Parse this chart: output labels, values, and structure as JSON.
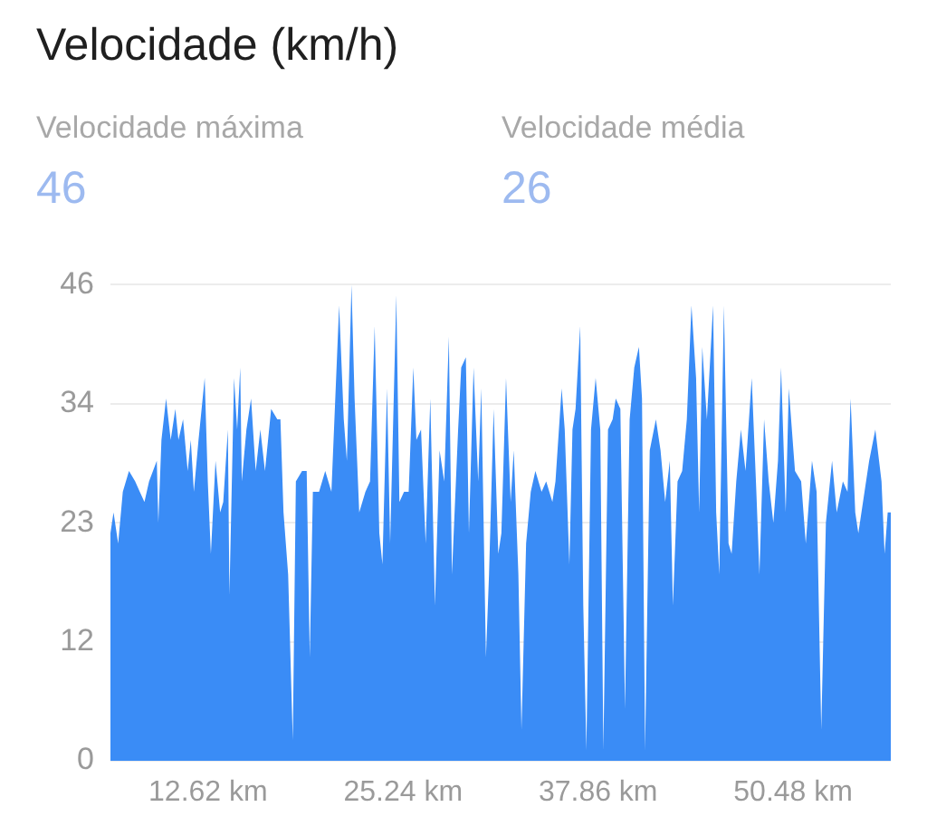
{
  "chart_data": {
    "type": "area",
    "title": "Velocidade (km/h)",
    "annotations": [
      "Velocidade máxima",
      "46",
      "Velocidade média",
      "26"
    ],
    "x": [
      6.3,
      6.5,
      6.8,
      7.1,
      7.5,
      7.9,
      8.2,
      8.5,
      8.8,
      9.3,
      9.4,
      9.6,
      9.9,
      10.2,
      10.5,
      10.7,
      11.0,
      11.3,
      11.5,
      11.7,
      12.0,
      12.4,
      12.6,
      12.8,
      13.1,
      13.4,
      13.6,
      13.9,
      14.0,
      14.3,
      14.5,
      14.7,
      14.8,
      15.1,
      15.4,
      15.7,
      16.0,
      16.3,
      16.7,
      17.1,
      17.3,
      17.5,
      17.8,
      18.1,
      18.3,
      18.7,
      19.0,
      19.2,
      19.4,
      19.8,
      20.2,
      20.6,
      21.1,
      21.4,
      21.6,
      21.9,
      22.1,
      22.4,
      22.8,
      23.1,
      23.4,
      23.7,
      23.9,
      24.2,
      24.4,
      24.8,
      25.0,
      25.3,
      25.6,
      25.9,
      26.1,
      26.4,
      26.7,
      27.0,
      27.3,
      27.6,
      27.9,
      28.2,
      28.4,
      28.8,
      29.0,
      29.3,
      29.5,
      29.8,
      30.1,
      30.3,
      30.6,
      30.8,
      31.1,
      31.4,
      31.6,
      31.9,
      32.2,
      32.4,
      32.7,
      32.9,
      33.2,
      33.5,
      33.8,
      34.2,
      34.5,
      34.9,
      35.1,
      35.5,
      35.7,
      36.0,
      36.2,
      36.4,
      36.7,
      36.9,
      37.1,
      37.4,
      37.7,
      38.0,
      38.2,
      38.5,
      38.8,
      39.0,
      39.3,
      39.6,
      39.9,
      40.2,
      40.5,
      40.7,
      40.9,
      41.2,
      41.6,
      41.9,
      42.2,
      42.5,
      42.7,
      43.0,
      43.3,
      43.6,
      43.9,
      44.2,
      44.4,
      44.6,
      44.9,
      45.3,
      45.5,
      45.7,
      46.0,
      46.3,
      46.5,
      46.8,
      47.1,
      47.4,
      47.8,
      48.1,
      48.3,
      48.6,
      48.9,
      49.2,
      49.5,
      49.7,
      50.0,
      50.2,
      50.6,
      51.0,
      51.3,
      51.7,
      52.0,
      52.3,
      52.6,
      53.0,
      53.3,
      53.7,
      54.0,
      54.2,
      54.5,
      54.7,
      55.1,
      55.4,
      55.8,
      56.2,
      56.4,
      56.6,
      56.8
    ],
    "values": [
      22,
      24,
      21,
      26,
      28,
      27,
      26,
      25,
      27,
      29,
      23,
      31,
      35,
      31,
      34,
      31,
      33,
      28,
      31,
      26,
      31,
      37,
      27,
      20,
      29,
      24,
      25,
      32,
      16,
      37,
      32,
      38,
      27,
      32,
      35,
      28,
      32,
      28,
      34,
      33,
      33,
      24,
      18,
      2,
      27,
      28,
      28,
      10,
      26,
      26,
      28,
      26,
      44,
      33,
      29,
      46,
      35,
      24,
      26,
      27,
      42,
      22,
      19,
      36,
      21,
      45,
      25,
      26,
      26,
      38,
      31,
      32,
      21,
      35,
      15,
      30,
      27,
      41,
      18,
      32,
      38,
      39,
      22,
      38,
      27,
      36,
      10,
      18,
      34,
      20,
      22,
      37,
      25,
      30,
      18,
      3,
      21,
      26,
      28,
      26,
      27,
      25,
      27,
      36,
      32,
      19,
      32,
      34,
      42,
      15,
      1,
      32,
      37,
      32,
      1,
      32,
      33,
      35,
      34,
      5,
      33,
      38,
      40,
      35,
      1,
      30,
      33,
      30,
      25,
      29,
      15,
      27,
      28,
      33,
      44,
      37,
      24,
      40,
      33,
      44,
      24,
      18,
      44,
      21,
      20,
      27,
      32,
      28,
      37,
      26,
      18,
      33,
      27,
      23,
      29,
      38,
      24,
      36,
      28,
      27,
      21,
      29,
      26,
      3,
      23,
      29,
      24,
      27,
      26,
      35,
      24,
      22,
      26,
      29,
      32,
      27,
      20,
      24,
      24
    ],
    "color": "#3a8cf6",
    "xlim": [
      6.3,
      56.8
    ],
    "xticks": [
      {
        "value": 12.62,
        "label": "12.62 km"
      },
      {
        "value": 25.24,
        "label": "25.24 km"
      },
      {
        "value": 37.86,
        "label": "37.86 km"
      },
      {
        "value": 50.48,
        "label": "50.48 km"
      }
    ],
    "ylim": [
      0,
      46
    ],
    "yticks": [
      0,
      {
        "value": 11.5,
        "label": "12"
      },
      23,
      {
        "value": 34.5,
        "label": "34"
      },
      46
    ],
    "grid": "y"
  }
}
